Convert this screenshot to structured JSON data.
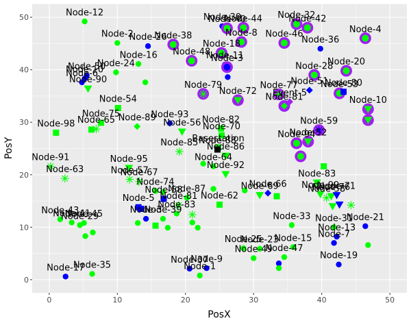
{
  "chart_data": {
    "type": "scatter",
    "xlabel": "PosX",
    "ylabel": "PosY",
    "xlim": [
      -2.5,
      52.5
    ],
    "ylim": [
      -2.5,
      52.5
    ],
    "x_ticks": [
      0,
      10,
      20,
      30,
      40,
      50
    ],
    "y_ticks": [
      0,
      10,
      20,
      30,
      40,
      50
    ],
    "grid": true,
    "colors": {
      "panel": "#ebebeb",
      "grid": "#ffffff",
      "green": "#00ff00",
      "blue": "#0000ff",
      "purple": "#a020f0",
      "black": "#000000"
    },
    "points": [
      {
        "x": 5.2,
        "y": 49.2,
        "shape": "circle",
        "color": "green",
        "label": "Node-12"
      },
      {
        "x": 10.0,
        "y": 45.1,
        "shape": "circle",
        "color": "green",
        "label": "Node-2"
      },
      {
        "x": 14.5,
        "y": 44.5,
        "shape": "circle",
        "color": "blue",
        "label": "Node-26"
      },
      {
        "x": 18.2,
        "y": 44.8,
        "shape": "purple-ring",
        "color": "green",
        "label": "Node-38"
      },
      {
        "x": 13.1,
        "y": 41.1,
        "shape": "circle",
        "color": "green",
        "label": "Node-16"
      },
      {
        "x": 9.8,
        "y": 39.5,
        "shape": "circle",
        "color": "green",
        "label": "Node-24"
      },
      {
        "x": 5.5,
        "y": 38.9,
        "shape": "circle",
        "color": "blue",
        "label": "Node-50"
      },
      {
        "x": 5.2,
        "y": 38.3,
        "shape": "circle",
        "color": "blue",
        "label": "Node-10"
      },
      {
        "x": 4.8,
        "y": 37.6,
        "shape": "circle",
        "color": "blue",
        "label": "Node-6"
      },
      {
        "x": 5.7,
        "y": 36.4,
        "shape": "triangle",
        "color": "green",
        "label": "Node-90"
      },
      {
        "x": 14.1,
        "y": 37.6,
        "shape": "circle",
        "color": "green",
        "label": ""
      },
      {
        "x": 10.1,
        "y": 32.7,
        "shape": "square",
        "color": "green",
        "label": "Node-54"
      },
      {
        "x": 7.6,
        "y": 29.9,
        "shape": "square",
        "color": "green",
        "label": "Node-75"
      },
      {
        "x": 6.9,
        "y": 28.7,
        "shape": "asterisk",
        "color": "green",
        "label": "Node-65"
      },
      {
        "x": 6.2,
        "y": 28.6,
        "shape": "square",
        "color": "green",
        "label": ""
      },
      {
        "x": 1.0,
        "y": 28.0,
        "shape": "square",
        "color": "green",
        "label": "Node-98"
      },
      {
        "x": 12.9,
        "y": 29.2,
        "shape": "diamond",
        "color": "green",
        "label": "Node-89"
      },
      {
        "x": 17.7,
        "y": 29.8,
        "shape": "diamond",
        "color": "blue",
        "label": "Node-93"
      },
      {
        "x": 19.5,
        "y": 28.2,
        "shape": "triangle",
        "color": "green",
        "label": "Node-56"
      },
      {
        "x": 20.9,
        "y": 41.7,
        "shape": "purple-ring",
        "color": "green",
        "label": "Node-48"
      },
      {
        "x": 25.4,
        "y": 48.3,
        "shape": "circle",
        "color": "blue",
        "label": "Node-30"
      },
      {
        "x": 26.1,
        "y": 47.9,
        "shape": "purple-ring",
        "color": "green",
        "label": "Node-40"
      },
      {
        "x": 28.5,
        "y": 48.0,
        "shape": "purple-ring",
        "color": "green",
        "label": "Node-44"
      },
      {
        "x": 28.2,
        "y": 45.3,
        "shape": "purple-ring",
        "color": "green",
        "label": "Node-8"
      },
      {
        "x": 25.3,
        "y": 43.2,
        "shape": "purple-ring",
        "color": "green",
        "label": "Node-18"
      },
      {
        "x": 25.8,
        "y": 41.0,
        "shape": "circle",
        "color": "blue",
        "label": "Node-11"
      },
      {
        "x": 26.1,
        "y": 40.5,
        "shape": "purple-ring",
        "color": "blue",
        "label": "Node-3"
      },
      {
        "x": 26.2,
        "y": 38.6,
        "shape": "circle",
        "color": "blue",
        "label": ""
      },
      {
        "x": 22.6,
        "y": 35.4,
        "shape": "purple-ring-asterisk",
        "color": "green",
        "label": "Node-79"
      },
      {
        "x": 27.7,
        "y": 34.2,
        "shape": "purple-ring-triangle",
        "color": "green",
        "label": "Node-72"
      },
      {
        "x": 36.3,
        "y": 48.7,
        "shape": "purple-ring",
        "color": "green",
        "label": "Node-32"
      },
      {
        "x": 37.9,
        "y": 48.0,
        "shape": "purple-ring",
        "color": "green",
        "label": "Node-42"
      },
      {
        "x": 34.5,
        "y": 45.1,
        "shape": "purple-ring",
        "color": "green",
        "label": "Node-46"
      },
      {
        "x": 39.8,
        "y": 44.0,
        "shape": "circle",
        "color": "blue",
        "label": "Node-36"
      },
      {
        "x": 46.4,
        "y": 46.0,
        "shape": "purple-ring",
        "color": "green",
        "label": "Node-4"
      },
      {
        "x": 43.6,
        "y": 39.8,
        "shape": "purple-ring",
        "color": "green",
        "label": "Node-20"
      },
      {
        "x": 38.9,
        "y": 39.0,
        "shape": "purple-ring",
        "color": "green",
        "label": "Node-28"
      },
      {
        "x": 38.2,
        "y": 36.1,
        "shape": "diamond",
        "color": "blue",
        "label": "Node-51"
      },
      {
        "x": 42.6,
        "y": 35.5,
        "shape": "purple-ring",
        "color": "green",
        "label": "Node-53"
      },
      {
        "x": 33.7,
        "y": 35.3,
        "shape": "purple-ring-asterisk",
        "color": "green",
        "label": "Node-77"
      },
      {
        "x": 34.5,
        "y": 33.1,
        "shape": "purple-ring-diamond",
        "color": "green",
        "label": "Node-81"
      },
      {
        "x": 35.3,
        "y": 33.9,
        "shape": "diamond",
        "color": "purple",
        "label": "Event-5"
      },
      {
        "x": 43.2,
        "y": 35.8,
        "shape": "square",
        "color": "blue",
        "label": "Node-80"
      },
      {
        "x": 46.8,
        "y": 32.5,
        "shape": "purple-ring-triangle",
        "color": "green",
        "label": "Node-10"
      },
      {
        "x": 46.8,
        "y": 30.4,
        "shape": "purple-ring-triangle",
        "color": "green",
        "label": ""
      },
      {
        "x": 39.6,
        "y": 28.5,
        "shape": "purple-ring-asterisk",
        "color": "blue",
        "label": "Node-59"
      },
      {
        "x": 38.0,
        "y": 26.3,
        "shape": "purple-ring-triangle",
        "color": "green",
        "label": "Node-52"
      },
      {
        "x": 36.3,
        "y": 26.0,
        "shape": "purple-ring",
        "color": "green",
        "label": "Node-94"
      },
      {
        "x": 36.9,
        "y": 23.5,
        "shape": "purple-ring",
        "color": "green",
        "label": ""
      },
      {
        "x": 25.2,
        "y": 28.8,
        "shape": "square",
        "color": "green",
        "label": "Node-82"
      },
      {
        "x": 25.3,
        "y": 27.5,
        "shape": "square",
        "color": "green",
        "label": "Node-70"
      },
      {
        "x": 24.8,
        "y": 25.2,
        "shape": "square",
        "color": "green",
        "label": "Basestation"
      },
      {
        "x": 24.7,
        "y": 24.8,
        "shape": "square",
        "color": "black",
        "label": "Node-88"
      },
      {
        "x": 19.1,
        "y": 24.4,
        "shape": "asterisk",
        "color": "green",
        "label": "Node-85"
      },
      {
        "x": 25.9,
        "y": 23.6,
        "shape": "triangle",
        "color": "green",
        "label": "Node-86"
      },
      {
        "x": 22.6,
        "y": 22.1,
        "shape": "circle",
        "color": "green",
        "label": ""
      },
      {
        "x": 24.1,
        "y": 21.6,
        "shape": "circle",
        "color": "green",
        "label": "Node-64"
      },
      {
        "x": 40.3,
        "y": 21.6,
        "shape": "square",
        "color": "green",
        "label": ""
      },
      {
        "x": 25.9,
        "y": 20.1,
        "shape": "triangle",
        "color": "green",
        "label": "Node-92"
      },
      {
        "x": 0.2,
        "y": 21.6,
        "shape": "asterisk",
        "color": "green",
        "label": "Node-91"
      },
      {
        "x": 2.3,
        "y": 19.3,
        "shape": "asterisk",
        "color": "green",
        "label": "Node-63"
      },
      {
        "x": 11.8,
        "y": 19.1,
        "shape": "asterisk",
        "color": "green",
        "label": "Node-57"
      },
      {
        "x": 11.7,
        "y": 21.3,
        "shape": "triangle",
        "color": "green",
        "label": "Node-95"
      },
      {
        "x": 13.2,
        "y": 18.7,
        "shape": "asterisk",
        "color": "green",
        "label": "Node-67"
      },
      {
        "x": 15.6,
        "y": 16.9,
        "shape": "circle",
        "color": "green",
        "label": "Node-74"
      },
      {
        "x": 16.7,
        "y": 16.7,
        "shape": "circle",
        "color": "green",
        "label": ""
      },
      {
        "x": 24.1,
        "y": 17.3,
        "shape": "circle",
        "color": "green",
        "label": ""
      },
      {
        "x": 28.7,
        "y": 17.0,
        "shape": "circle",
        "color": "green",
        "label": ""
      },
      {
        "x": 30.9,
        "y": 16.1,
        "shape": "triangle",
        "color": "green",
        "label": "Node-69"
      },
      {
        "x": 32.1,
        "y": 16.5,
        "shape": "diamond",
        "color": "blue",
        "label": "Node-66"
      },
      {
        "x": 33.4,
        "y": 15.9,
        "shape": "square",
        "color": "green",
        "label": ""
      },
      {
        "x": 39.3,
        "y": 18.5,
        "shape": "triangle",
        "color": "green",
        "label": "Node-83"
      },
      {
        "x": 39.8,
        "y": 16.3,
        "shape": "triangle",
        "color": "green",
        "label": "Node-99"
      },
      {
        "x": 40.7,
        "y": 15.6,
        "shape": "asterisk",
        "color": "green",
        "label": "Node-58"
      },
      {
        "x": 41.4,
        "y": 15.9,
        "shape": "triangle",
        "color": "green",
        "label": "Node-76"
      },
      {
        "x": 42.2,
        "y": 16.1,
        "shape": "triangle",
        "color": "blue",
        "label": "Node-71"
      },
      {
        "x": 41.6,
        "y": 14.0,
        "shape": "triangle",
        "color": "green",
        "label": ""
      },
      {
        "x": 42.6,
        "y": 14.3,
        "shape": "triangle",
        "color": "blue",
        "label": ""
      },
      {
        "x": 44.3,
        "y": 14.2,
        "shape": "asterisk",
        "color": "green",
        "label": ""
      },
      {
        "x": 20.2,
        "y": 15.6,
        "shape": "circle",
        "color": "green",
        "label": "Node-87"
      },
      {
        "x": 16.8,
        "y": 15.4,
        "shape": "square",
        "color": "blue",
        "label": "Node-58"
      },
      {
        "x": 19.0,
        "y": 14.2,
        "shape": "asterisk",
        "color": "green",
        "label": "Node-81"
      },
      {
        "x": 18.7,
        "y": 12.6,
        "shape": "circle",
        "color": "green",
        "label": "Node-83"
      },
      {
        "x": 25.0,
        "y": 14.3,
        "shape": "square",
        "color": "green",
        "label": "Node-62"
      },
      {
        "x": 13.1,
        "y": 13.8,
        "shape": "square",
        "color": "blue",
        "label": "Node-5"
      },
      {
        "x": 14.2,
        "y": 11.6,
        "shape": "circle",
        "color": "blue",
        "label": "Node-3"
      },
      {
        "x": 13.5,
        "y": 13.5,
        "shape": "square",
        "color": "blue",
        "label": ""
      },
      {
        "x": 21.0,
        "y": 12.4,
        "shape": "asterisk",
        "color": "green",
        "label": ""
      },
      {
        "x": 16.7,
        "y": 11.6,
        "shape": "circle",
        "color": "green",
        "label": "Node-39"
      },
      {
        "x": 21.0,
        "y": 10.9,
        "shape": "circle",
        "color": "green",
        "label": ""
      },
      {
        "x": 13.0,
        "y": 10.8,
        "shape": "circle",
        "color": "green",
        "label": ""
      },
      {
        "x": 15.6,
        "y": 10.3,
        "shape": "square",
        "color": "green",
        "label": ""
      },
      {
        "x": 17.4,
        "y": 9.9,
        "shape": "circle",
        "color": "green",
        "label": ""
      },
      {
        "x": 21.8,
        "y": 9.9,
        "shape": "circle",
        "color": "green",
        "label": ""
      },
      {
        "x": 1.6,
        "y": 11.5,
        "shape": "circle",
        "color": "green",
        "label": "Node-43"
      },
      {
        "x": 3.3,
        "y": 10.9,
        "shape": "circle",
        "color": "green",
        "label": "Node-41"
      },
      {
        "x": 4.5,
        "y": 10.4,
        "shape": "circle",
        "color": "green",
        "label": "Node-29"
      },
      {
        "x": 5.1,
        "y": 10.8,
        "shape": "circle",
        "color": "green",
        "label": "Node-45"
      },
      {
        "x": 6.4,
        "y": 9.0,
        "shape": "circle",
        "color": "green",
        "label": ""
      },
      {
        "x": 5.3,
        "y": 8.3,
        "shape": "circle",
        "color": "green",
        "label": ""
      },
      {
        "x": 35.6,
        "y": 10.4,
        "shape": "circle",
        "color": "green",
        "label": "Node-33"
      },
      {
        "x": 41.8,
        "y": 10.0,
        "shape": "circle",
        "color": "green",
        "label": "Node-31"
      },
      {
        "x": 42.2,
        "y": 8.2,
        "shape": "circle",
        "color": "blue",
        "label": "Node-13"
      },
      {
        "x": 46.4,
        "y": 10.2,
        "shape": "circle",
        "color": "blue",
        "label": "Node-21"
      },
      {
        "x": 41.8,
        "y": 7.0,
        "shape": "circle",
        "color": "blue",
        "label": "Node-7"
      },
      {
        "x": 46.8,
        "y": 6.6,
        "shape": "circle",
        "color": "green",
        "label": ""
      },
      {
        "x": 35.8,
        "y": 6.2,
        "shape": "circle",
        "color": "green",
        "label": "Node-15"
      },
      {
        "x": 28.5,
        "y": 6.0,
        "shape": "circle",
        "color": "green",
        "label": "Node-25"
      },
      {
        "x": 30.9,
        "y": 5.9,
        "shape": "circle",
        "color": "green",
        "label": "Node-23"
      },
      {
        "x": 30.0,
        "y": 4.1,
        "shape": "circle",
        "color": "green",
        "label": "Node-49"
      },
      {
        "x": 34.5,
        "y": 4.3,
        "shape": "circle",
        "color": "green",
        "label": "Node-47"
      },
      {
        "x": 33.7,
        "y": 3.1,
        "shape": "circle",
        "color": "blue",
        "label": ""
      },
      {
        "x": 33.7,
        "y": 2.2,
        "shape": "circle",
        "color": "green",
        "label": ""
      },
      {
        "x": 42.5,
        "y": 2.9,
        "shape": "circle",
        "color": "blue",
        "label": "Node-19"
      },
      {
        "x": 22.1,
        "y": 0.8,
        "shape": "circle",
        "color": "green",
        "label": "Node-1"
      },
      {
        "x": 20.6,
        "y": 2.1,
        "shape": "circle",
        "color": "blue",
        "label": "Node-37"
      },
      {
        "x": 23.1,
        "y": 2.2,
        "shape": "circle",
        "color": "blue",
        "label": "Node-9"
      },
      {
        "x": 2.4,
        "y": 0.6,
        "shape": "circle",
        "color": "blue",
        "label": "Node-17"
      },
      {
        "x": 6.3,
        "y": 1.1,
        "shape": "circle",
        "color": "green",
        "label": "Node-35"
      }
    ]
  }
}
